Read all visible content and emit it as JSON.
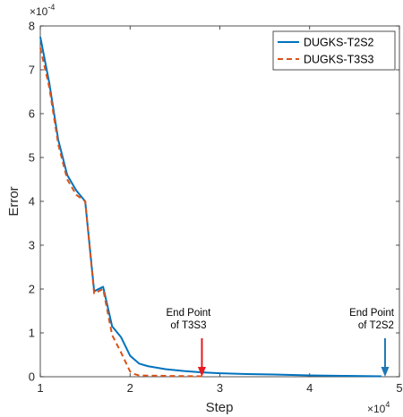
{
  "chart_data": {
    "type": "line",
    "xlabel": "Step",
    "ylabel": "Error",
    "x_multiplier": "×10",
    "x_multiplier_exp": "4",
    "y_multiplier": "×10",
    "y_multiplier_exp": "-4",
    "xlim": [
      1,
      5
    ],
    "ylim": [
      0,
      8
    ],
    "x_ticks": [
      "1",
      "2",
      "3",
      "4",
      "5"
    ],
    "y_ticks": [
      "0",
      "1",
      "2",
      "3",
      "4",
      "5",
      "6",
      "7",
      "8"
    ],
    "legend_position": "top-right",
    "grid": false,
    "series": [
      {
        "name": "DUGKS-T2S2",
        "color": "#0072BD",
        "style": "solid",
        "x": [
          1.0,
          1.1,
          1.2,
          1.3,
          1.4,
          1.5,
          1.6,
          1.7,
          1.8,
          1.9,
          2.0,
          2.1,
          2.2,
          2.4,
          2.6,
          2.8,
          3.0,
          3.3,
          3.6,
          4.0,
          4.4,
          4.8
        ],
        "y": [
          7.75,
          6.7,
          5.4,
          4.6,
          4.25,
          4.0,
          1.95,
          2.05,
          1.15,
          0.9,
          0.48,
          0.3,
          0.24,
          0.17,
          0.13,
          0.1,
          0.08,
          0.06,
          0.05,
          0.03,
          0.02,
          0.01
        ]
      },
      {
        "name": "DUGKS-T3S3",
        "color": "#D95319",
        "style": "dashed",
        "x": [
          1.0,
          1.1,
          1.2,
          1.3,
          1.4,
          1.5,
          1.6,
          1.7,
          1.8,
          1.9,
          2.0,
          2.05,
          2.1,
          2.4,
          2.8
        ],
        "y": [
          7.5,
          6.6,
          5.3,
          4.5,
          4.15,
          4.0,
          1.9,
          2.0,
          0.95,
          0.55,
          0.12,
          0.06,
          0.03,
          0.02,
          0.01
        ]
      }
    ],
    "annotations": [
      {
        "lines": [
          "End Point",
          "of T3S3"
        ],
        "x": 2.8,
        "arrow_color": "#e8191f"
      },
      {
        "lines": [
          "End Point",
          "of T2S2"
        ],
        "x": 4.84,
        "arrow_color": "#1f78b4"
      }
    ]
  }
}
